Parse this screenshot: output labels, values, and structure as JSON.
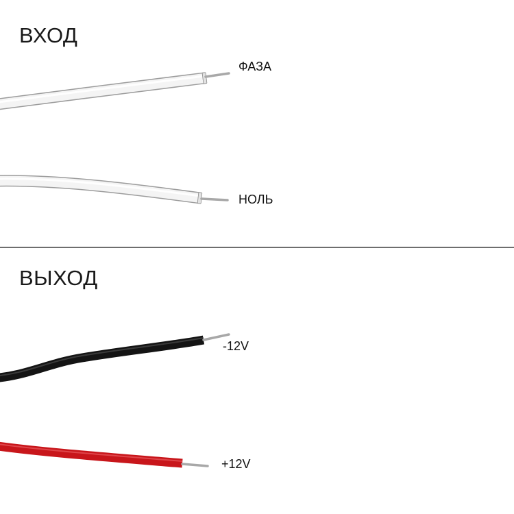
{
  "input": {
    "title": "ВХОД",
    "wires": [
      {
        "label": "ФАЗА",
        "insulation_color": "#f4f4f4"
      },
      {
        "label": "НОЛЬ",
        "insulation_color": "#f4f4f4"
      }
    ]
  },
  "output": {
    "title": "ВЫХОД",
    "wires": [
      {
        "label": "-12V",
        "insulation_color": "#141414"
      },
      {
        "label": "+12V",
        "insulation_color": "#c8161b"
      }
    ]
  },
  "conductor_color": "#a8a8a8"
}
